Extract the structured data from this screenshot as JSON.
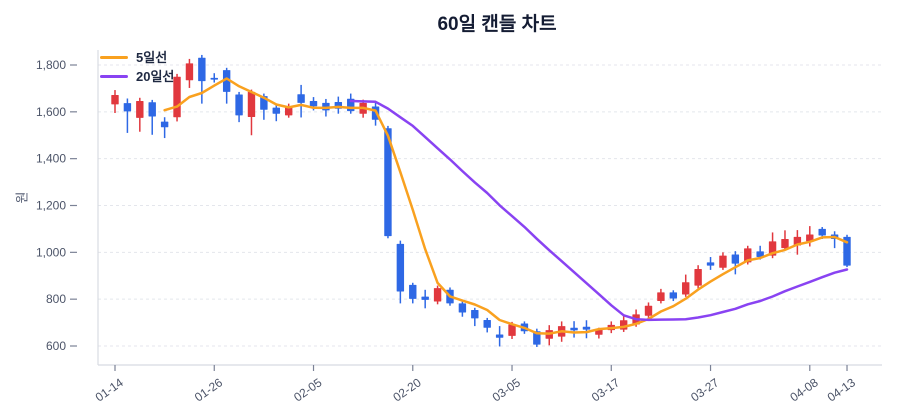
{
  "title": "60일 캔들 차트",
  "y_axis_label": "원",
  "legend": {
    "items": [
      {
        "label": "5일선"
      },
      {
        "label": "20일선"
      }
    ]
  },
  "chart_data": {
    "type": "candlestick",
    "title": "60일 캔들 차트",
    "up_color": "#e1383e",
    "down_color": "#2e68e5",
    "grid": true,
    "legend_position": "top-left",
    "y_axis": {
      "label": "원",
      "ticks": [
        {
          "value": 1800,
          "label": "1,800"
        },
        {
          "value": 1600,
          "label": "1,600"
        },
        {
          "value": 1400,
          "label": "1,400"
        },
        {
          "value": 1200,
          "label": "1,200"
        },
        {
          "value": 1000,
          "label": "1,000"
        },
        {
          "value": 800,
          "label": "800"
        },
        {
          "value": 600,
          "label": "600"
        }
      ],
      "range": [
        560,
        1870
      ]
    },
    "x_axis": {
      "ticks": [
        {
          "candle_index": 0,
          "label": "01-14"
        },
        {
          "candle_index": 8,
          "label": "01-26"
        },
        {
          "candle_index": 16,
          "label": "02-05"
        },
        {
          "candle_index": 24,
          "label": "02-20"
        },
        {
          "candle_index": 32,
          "label": "03-05"
        },
        {
          "candle_index": 40,
          "label": "03-17"
        },
        {
          "candle_index": 48,
          "label": "03-27"
        },
        {
          "candle_index": 56,
          "label": "04-08"
        },
        {
          "candle_index": 59,
          "label": "04-13"
        }
      ]
    },
    "moving_averages": [
      {
        "name": "5일선",
        "window": 5,
        "color": "#f9a11f"
      },
      {
        "name": "20일선",
        "window": 20,
        "color": "#8943f2"
      }
    ],
    "candles_format": [
      "open",
      "high",
      "low",
      "close"
    ],
    "candles": [
      [
        1632,
        1693,
        1595,
        1672
      ],
      [
        1637,
        1657,
        1510,
        1602
      ],
      [
        1574,
        1660,
        1515,
        1646
      ],
      [
        1641,
        1651,
        1502,
        1580
      ],
      [
        1558,
        1577,
        1488,
        1534
      ],
      [
        1577,
        1762,
        1559,
        1750
      ],
      [
        1735,
        1826,
        1702,
        1807
      ],
      [
        1831,
        1843,
        1635,
        1731
      ],
      [
        1745,
        1765,
        1725,
        1738
      ],
      [
        1778,
        1788,
        1635,
        1685
      ],
      [
        1674,
        1685,
        1556,
        1585
      ],
      [
        1578,
        1695,
        1500,
        1685
      ],
      [
        1667,
        1678,
        1566,
        1609
      ],
      [
        1618,
        1632,
        1560,
        1592
      ],
      [
        1585,
        1635,
        1575,
        1624
      ],
      [
        1675,
        1715,
        1576,
        1638
      ],
      [
        1646,
        1663,
        1606,
        1624
      ],
      [
        1638,
        1655,
        1580,
        1606
      ],
      [
        1642,
        1665,
        1592,
        1613
      ],
      [
        1656,
        1678,
        1592,
        1603
      ],
      [
        1592,
        1652,
        1575,
        1638
      ],
      [
        1623,
        1638,
        1541,
        1566
      ],
      [
        1530,
        1540,
        1060,
        1069
      ],
      [
        1036,
        1050,
        782,
        833
      ],
      [
        861,
        870,
        782,
        801
      ],
      [
        811,
        840,
        761,
        797
      ],
      [
        790,
        858,
        778,
        847
      ],
      [
        840,
        850,
        772,
        782
      ],
      [
        782,
        795,
        725,
        743
      ],
      [
        754,
        763,
        685,
        718
      ],
      [
        711,
        720,
        658,
        678
      ],
      [
        649,
        685,
        598,
        635
      ],
      [
        643,
        703,
        630,
        692
      ],
      [
        696,
        705,
        652,
        663
      ],
      [
        663,
        674,
        596,
        606
      ],
      [
        631,
        689,
        603,
        668
      ],
      [
        640,
        705,
        618,
        685
      ],
      [
        678,
        706,
        636,
        667
      ],
      [
        682,
        710,
        633,
        670
      ],
      [
        648,
        678,
        632,
        670
      ],
      [
        668,
        705,
        655,
        690
      ],
      [
        670,
        735,
        660,
        710
      ],
      [
        692,
        756,
        682,
        735
      ],
      [
        729,
        786,
        720,
        772
      ],
      [
        792,
        844,
        782,
        829
      ],
      [
        829,
        838,
        792,
        803
      ],
      [
        820,
        905,
        810,
        872
      ],
      [
        858,
        945,
        846,
        929
      ],
      [
        957,
        980,
        925,
        943
      ],
      [
        934,
        1000,
        925,
        986
      ],
      [
        991,
        1005,
        906,
        952
      ],
      [
        957,
        1028,
        948,
        1017
      ],
      [
        1004,
        1028,
        969,
        980
      ],
      [
        986,
        1085,
        975,
        1047
      ],
      [
        1018,
        1094,
        1009,
        1057
      ],
      [
        1029,
        1095,
        990,
        1066
      ],
      [
        1047,
        1112,
        1025,
        1076
      ],
      [
        1100,
        1108,
        1057,
        1072
      ],
      [
        1076,
        1090,
        1018,
        1057
      ],
      [
        1066,
        1075,
        937,
        943
      ]
    ]
  }
}
